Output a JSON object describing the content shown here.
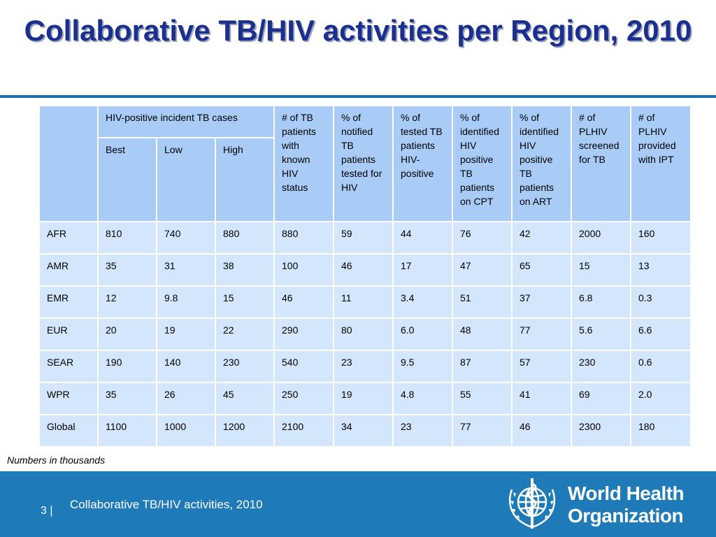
{
  "slide": {
    "title": "Collaborative TB/HIV activities per Region, 2010",
    "note": "Numbers in thousands"
  },
  "table": {
    "corner": "",
    "group_header": "HIV-positive incident TB cases",
    "sub_headers": [
      "Best",
      "Low",
      "High"
    ],
    "headers": [
      "# of TB patients with known HIV status",
      "% of notified TB patients tested for HIV",
      "% of tested TB patients HIV-positive",
      "% of identified HIV positive TB patients on CPT",
      "% of identified HIV positive TB patients on ART",
      "# of PLHIV screened for TB",
      "# of PLHIV provided with IPT"
    ],
    "rows": [
      [
        "AFR",
        "810",
        "740",
        "880",
        "880",
        "59",
        "44",
        "76",
        "42",
        "2000",
        "160"
      ],
      [
        "AMR",
        "35",
        "31",
        "38",
        "100",
        "46",
        "17",
        "47",
        "65",
        "15",
        "13"
      ],
      [
        "EMR",
        "12",
        "9.8",
        "15",
        "46",
        "11",
        "3.4",
        "51",
        "37",
        "6.8",
        "0.3"
      ],
      [
        "EUR",
        "20",
        "19",
        "22",
        "290",
        "80",
        "6.0",
        "48",
        "77",
        "5.6",
        "6.6"
      ],
      [
        "SEAR",
        "190",
        "140",
        "230",
        "540",
        "23",
        "9.5",
        "87",
        "57",
        "230",
        "0.6"
      ],
      [
        "WPR",
        "35",
        "26",
        "45",
        "250",
        "19",
        "4.8",
        "55",
        "41",
        "69",
        "2.0"
      ],
      [
        "Global",
        "1100",
        "1000",
        "1200",
        "2100",
        "34",
        "23",
        "77",
        "46",
        "2300",
        "180"
      ]
    ]
  },
  "footer": {
    "page_number": "3",
    "separator": "|",
    "text": "Collaborative TB/HIV activities, 2010",
    "logo_line1": "World Health",
    "logo_line2": "Organization",
    "logo_icon": "who-emblem-icon"
  },
  "colors": {
    "title": "#1b2f8f",
    "rule": "#1a6fb0",
    "header_fill": "#a9ccf6",
    "body_fill": "#d3e6fb",
    "footer_fill": "#1f7ab8"
  }
}
